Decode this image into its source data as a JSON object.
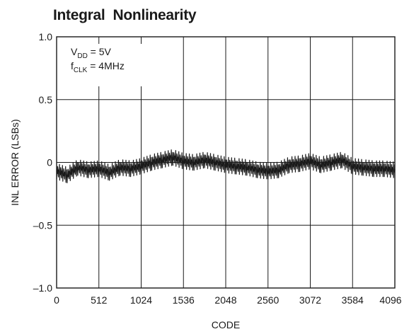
{
  "chart_data": {
    "type": "line",
    "title": "Integral  Nonlinearity",
    "xlabel": "CODE",
    "ylabel": "INL ERROR (LSBs)",
    "xlim": [
      0,
      4096
    ],
    "ylim": [
      -1.0,
      1.0
    ],
    "xticks": [
      0,
      512,
      1024,
      1536,
      2048,
      2560,
      3072,
      3584,
      4096
    ],
    "xtick_labels": [
      "0",
      "512",
      "1024",
      "1536",
      "2048",
      "2560",
      "3072",
      "3584",
      "4096"
    ],
    "yticks": [
      1.0,
      0.5,
      0,
      -0.5,
      -1.0
    ],
    "ytick_labels": [
      "1.0",
      "0.5",
      "0",
      "–0.5",
      "–1.0"
    ],
    "grid": true,
    "annotations": [
      {
        "base": "V",
        "sub": "DD",
        "rest": " = 5V"
      },
      {
        "base": "f",
        "sub": "CLK",
        "rest": " = 4MHz"
      }
    ],
    "series": [
      {
        "color": "#1a1a1a",
        "x": [
          0,
          128,
          256,
          384,
          512,
          640,
          768,
          896,
          1024,
          1152,
          1280,
          1408,
          1536,
          1664,
          1792,
          1920,
          2048,
          2176,
          2304,
          2432,
          2560,
          2688,
          2816,
          2944,
          3072,
          3200,
          3328,
          3456,
          3584,
          3712,
          3840,
          3968,
          4096
        ],
        "y": [
          -0.07,
          -0.1,
          -0.04,
          -0.06,
          -0.05,
          -0.08,
          -0.04,
          -0.05,
          -0.03,
          0.0,
          0.02,
          0.04,
          0.01,
          0.0,
          0.02,
          0.0,
          -0.02,
          -0.03,
          -0.04,
          -0.06,
          -0.07,
          -0.06,
          -0.02,
          -0.01,
          0.01,
          -0.02,
          0.0,
          0.02,
          -0.03,
          -0.04,
          -0.05,
          -0.05,
          -0.06
        ]
      }
    ]
  }
}
